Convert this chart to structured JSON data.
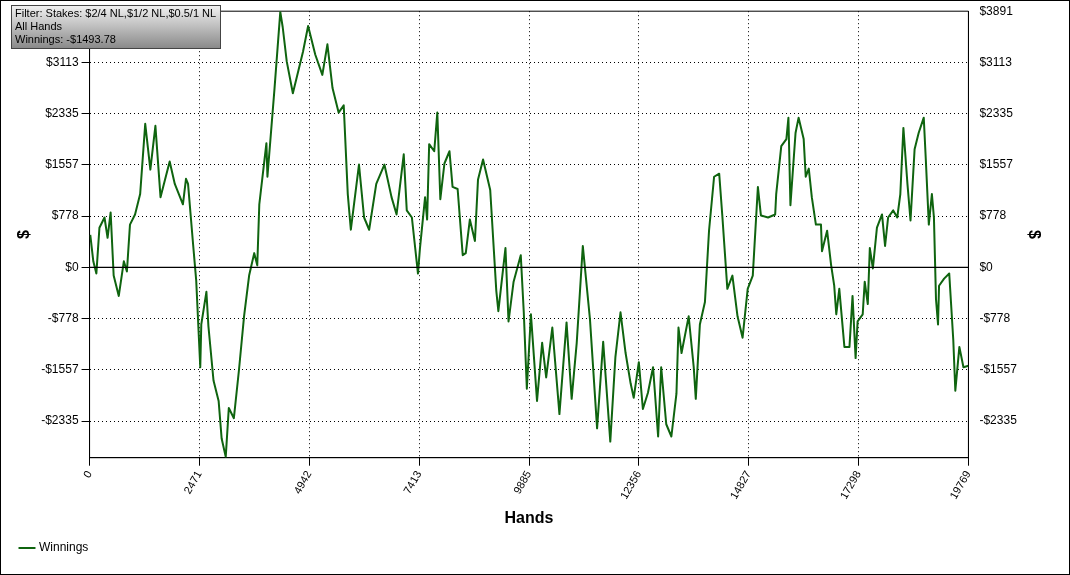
{
  "chart_data": {
    "type": "line",
    "xlabel": "Hands",
    "ylabel": "$",
    "y2label": "$",
    "annotations": [
      "Filter: Stakes: $2/4 NL,$1/2 NL,$0.5/1 NL",
      "All Hands",
      "Winnings: -$1493.78"
    ],
    "xlim": [
      0,
      19769
    ],
    "xticks": [
      0,
      2471,
      4942,
      7413,
      9885,
      12356,
      14827,
      17298,
      19769
    ],
    "ylim": [
      -2890,
      3891
    ],
    "yticks": [
      {
        "value": -2335,
        "label": "-$2335"
      },
      {
        "value": -1557,
        "label": "-$1557"
      },
      {
        "value": -778,
        "label": "-$778"
      },
      {
        "value": 0,
        "label": "$0"
      },
      {
        "value": 778,
        "label": "$778"
      },
      {
        "value": 1557,
        "label": "$1557"
      },
      {
        "value": 2335,
        "label": "$2335"
      },
      {
        "value": 3113,
        "label": "$3113"
      }
    ],
    "y2lim": [
      -2890,
      3891
    ],
    "y2ticks": [
      {
        "value": -2335,
        "label": "-$2335"
      },
      {
        "value": -1557,
        "label": "-$1557"
      },
      {
        "value": -778,
        "label": "-$778"
      },
      {
        "value": 0,
        "label": "$0"
      },
      {
        "value": 778,
        "label": "$778"
      },
      {
        "value": 1557,
        "label": "$1557"
      },
      {
        "value": 2335,
        "label": "$2335"
      },
      {
        "value": 3113,
        "label": "$3113"
      },
      {
        "value": 3891,
        "label": "$3891"
      }
    ],
    "grid": true,
    "legend": "bottom left",
    "line_style": "solid",
    "marker": "none",
    "ref_lines": [
      {
        "axis": "y",
        "value": 0,
        "color": "#000000"
      }
    ],
    "series": [
      {
        "name": "Winnings",
        "color": "#0f640f",
        "x": [
          16,
          84,
          153,
          222,
          336,
          405,
          474,
          542,
          657,
          771,
          840,
          909,
          1023,
          1138,
          1252,
          1367,
          1481,
          1596,
          1802,
          1917,
          2100,
          2169,
          2215,
          2330,
          2399,
          2490,
          2513,
          2628,
          2674,
          2788,
          2903,
          2971,
          3063,
          3132,
          3246,
          3360,
          3475,
          3589,
          3704,
          3772,
          3818,
          3978,
          4001,
          4161,
          4230,
          4290,
          4344,
          4436,
          4573,
          4802,
          4916,
          5076,
          5236,
          5350,
          5465,
          5602,
          5717,
          5808,
          5877,
          6060,
          6175,
          6289,
          6449,
          6632,
          6792,
          6906,
          7067,
          7135,
          7250,
          7387,
          7432,
          7547,
          7593,
          7639,
          7753,
          7822,
          7890,
          7982,
          8096,
          8165,
          8279,
          8394,
          8462,
          8554,
          8668,
          8737,
          8851,
          9012,
          9149,
          9195,
          9355,
          9424,
          9538,
          9699,
          9767,
          9836,
          9928,
          10065,
          10180,
          10271,
          10409,
          10569,
          10729,
          10844,
          10958,
          11095,
          11256,
          11416,
          11553,
          11713,
          11828,
          11943,
          12057,
          12171,
          12240,
          12355,
          12446,
          12560,
          12675,
          12789,
          12858,
          12972,
          13087,
          13201,
          13247,
          13316,
          13476,
          13590,
          13636,
          13728,
          13842,
          13934,
          14048,
          14163,
          14231,
          14346,
          14460,
          14575,
          14689,
          14804,
          14918,
          15033,
          15101,
          15262,
          15422,
          15445,
          15559,
          15674,
          15720,
          15765,
          15880,
          15949,
          16063,
          16109,
          16178,
          16246,
          16338,
          16452,
          16475,
          16590,
          16681,
          16750,
          16796,
          16864,
          16979,
          17093,
          17162,
          17231,
          17276,
          17391,
          17436,
          17505,
          17551,
          17619,
          17711,
          17825,
          17894,
          17962,
          18077,
          18168,
          18237,
          18306,
          18397,
          18466,
          18558,
          18649,
          18764,
          18810,
          18878,
          18947,
          18993,
          19039,
          19085,
          19108,
          19222,
          19337,
          19428,
          19474,
          19565,
          19657,
          19769
        ],
        "values": [
          495,
          93,
          -93,
          603,
          758,
          449,
          835,
          -124,
          -433,
          93,
          -62,
          650,
          804,
          1114,
          2181,
          1485,
          2150,
          1067,
          1609,
          1268,
          959,
          1346,
          1268,
          340,
          -201,
          -1516,
          -866,
          -371,
          -897,
          -1717,
          -2027,
          -2599,
          -2877,
          -2135,
          -2290,
          -1562,
          -743,
          -124,
          217,
          31,
          959,
          1887,
          1377,
          2723,
          3341,
          3880,
          3651,
          3125,
          2645,
          3280,
          3666,
          3233,
          2924,
          3388,
          2723,
          2351,
          2460,
          1114,
          572,
          1562,
          758,
          572,
          1268,
          1562,
          1067,
          804,
          1717,
          866,
          758,
          -93,
          294,
          1067,
          727,
          1872,
          1764,
          2351,
          1036,
          1578,
          1764,
          1222,
          1191,
          186,
          217,
          727,
          402,
          1330,
          1640,
          1176,
          -356,
          -665,
          294,
          -820,
          -217,
          186,
          -681,
          -1841,
          -712,
          -2027,
          -1145,
          -1671,
          -913,
          -2228,
          -835,
          -1996,
          -1145,
          325,
          -789,
          -2444,
          -1129,
          -2645,
          -1361,
          -681,
          -1300,
          -1764,
          -1980,
          -1439,
          -2150,
          -1903,
          -1516,
          -2568,
          -1516,
          -2382,
          -2568,
          -1918,
          -913,
          -1300,
          -743,
          -1516,
          -1996,
          -866,
          -526,
          557,
          1377,
          1423,
          804,
          -325,
          -124,
          -743,
          -1067,
          -325,
          -124,
          1222,
          789,
          758,
          804,
          1114,
          1841,
          1949,
          2274,
          944,
          2042,
          2274,
          1949,
          1377,
          1501,
          1067,
          650,
          650,
          247,
          557,
          31,
          -278,
          -712,
          -325,
          -1207,
          -1207,
          -433,
          -1377,
          -820,
          -712,
          -217,
          -557,
          294,
          -15,
          603,
          804,
          325,
          758,
          866,
          758,
          1114,
          2119,
          1268,
          712,
          1795,
          2042,
          2274,
          1640,
          650,
          1114,
          758,
          -480,
          -866,
          -278,
          -170,
          -93,
          -1098,
          -1872,
          -1207,
          -1516,
          -1494
        ]
      }
    ]
  }
}
